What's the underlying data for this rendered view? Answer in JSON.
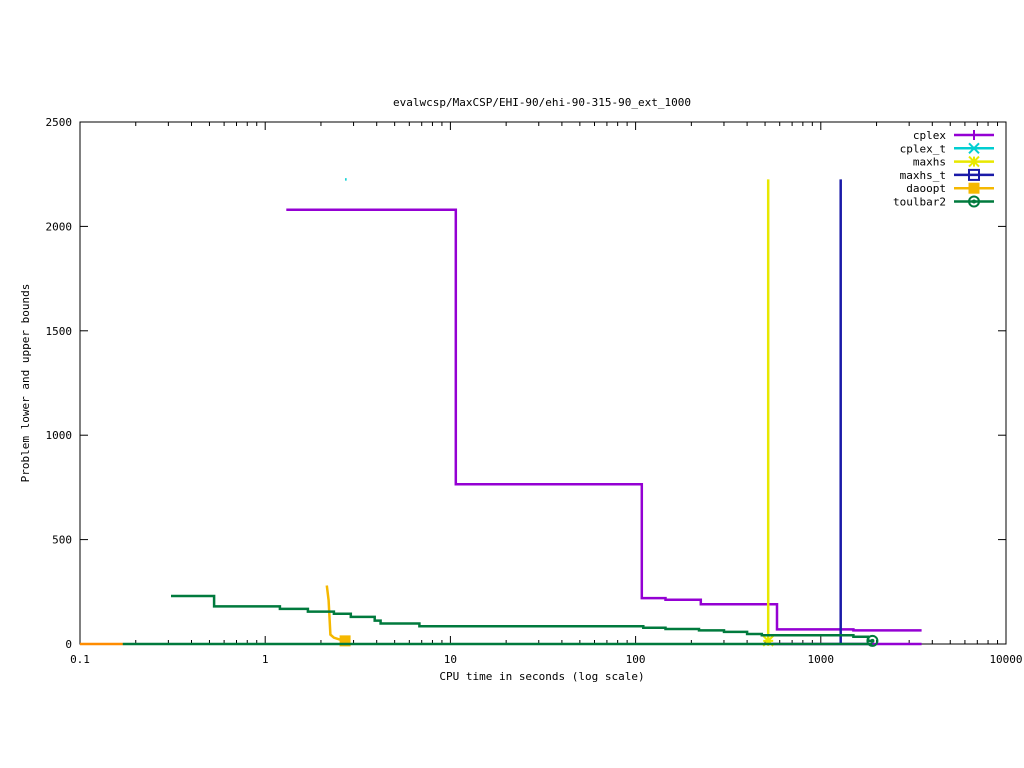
{
  "chart_data": {
    "type": "line",
    "title": "evalwcsp/MaxCSP/EHI-90/ehi-90-315-90_ext_1000",
    "xlabel": "CPU time in seconds (log scale)",
    "ylabel": "Problem lower and upper bounds",
    "xscale": "log",
    "xlim": [
      0.1,
      10000
    ],
    "ylim": [
      0,
      2500
    ],
    "x_ticks": [
      {
        "value": 0.1,
        "label": "0.1"
      },
      {
        "value": 1,
        "label": "1"
      },
      {
        "value": 10,
        "label": "10"
      },
      {
        "value": 100,
        "label": "100"
      },
      {
        "value": 1000,
        "label": "1000"
      },
      {
        "value": 10000,
        "label": "10000"
      }
    ],
    "y_ticks": [
      {
        "value": 0,
        "label": "0"
      },
      {
        "value": 500,
        "label": "500"
      },
      {
        "value": 1000,
        "label": "1000"
      },
      {
        "value": 1500,
        "label": "1500"
      },
      {
        "value": 2000,
        "label": "2000"
      },
      {
        "value": 2500,
        "label": "2500"
      }
    ],
    "grid": false,
    "legend_position": "top-right",
    "series": [
      {
        "name": "cplex",
        "color": "#9400d3",
        "marker": "plus",
        "upper": [
          [
            1.3,
            2080
          ],
          [
            10.7,
            2080
          ],
          [
            10.7,
            765
          ],
          [
            108,
            765
          ],
          [
            108,
            220
          ],
          [
            145,
            220
          ],
          [
            145,
            212
          ],
          [
            225,
            212
          ],
          [
            225,
            190
          ],
          [
            580,
            190
          ],
          [
            580,
            70
          ],
          [
            1500,
            70
          ],
          [
            1500,
            65
          ],
          [
            3500,
            65
          ]
        ],
        "lower": [
          [
            540,
            0
          ],
          [
            3500,
            0
          ]
        ],
        "marker_points": []
      },
      {
        "name": "cplex_t",
        "color": "#00ced1",
        "marker": "cross",
        "upper": [],
        "lower": [
          [
            2.7,
            2225
          ],
          [
            2.75,
            2225
          ]
        ],
        "marker_points": []
      },
      {
        "name": "maxhs",
        "color": "#e8e800",
        "marker": "star",
        "upper": [
          [
            520,
            2225
          ],
          [
            520,
            15
          ]
        ],
        "lower": [
          [
            520,
            0
          ],
          [
            520,
            15
          ]
        ],
        "marker_points": [
          [
            520,
            15
          ]
        ]
      },
      {
        "name": "maxhs_t",
        "color": "#1a1aa8",
        "marker": "square",
        "upper": [
          [
            1280,
            2225
          ],
          [
            1280,
            0
          ]
        ],
        "lower": [],
        "marker_points": []
      },
      {
        "name": "daoopt",
        "color": "#f5b800",
        "marker": "filled-square",
        "upper": [
          [
            2.15,
            280
          ],
          [
            2.2,
            210
          ],
          [
            2.25,
            45
          ],
          [
            2.35,
            30
          ],
          [
            2.55,
            20
          ],
          [
            2.8,
            15
          ]
        ],
        "lower": [],
        "marker_points": [
          [
            2.7,
            15
          ]
        ]
      },
      {
        "name": "toulbar2",
        "color": "#007a3d",
        "marker": "circle",
        "upper": [
          [
            0.31,
            230
          ],
          [
            0.53,
            230
          ],
          [
            0.53,
            180
          ],
          [
            1.2,
            180
          ],
          [
            1.2,
            168
          ],
          [
            1.7,
            168
          ],
          [
            1.7,
            155
          ],
          [
            2.35,
            155
          ],
          [
            2.35,
            145
          ],
          [
            2.9,
            145
          ],
          [
            2.9,
            130
          ],
          [
            3.9,
            130
          ],
          [
            3.9,
            112
          ],
          [
            4.2,
            112
          ],
          [
            4.2,
            98
          ],
          [
            6.8,
            98
          ],
          [
            6.8,
            85
          ],
          [
            110,
            85
          ],
          [
            110,
            78
          ],
          [
            145,
            78
          ],
          [
            145,
            72
          ],
          [
            220,
            72
          ],
          [
            220,
            65
          ],
          [
            300,
            65
          ],
          [
            300,
            58
          ],
          [
            400,
            58
          ],
          [
            400,
            48
          ],
          [
            480,
            48
          ],
          [
            480,
            42
          ],
          [
            1500,
            42
          ],
          [
            1500,
            35
          ],
          [
            1800,
            35
          ],
          [
            1800,
            15
          ],
          [
            1900,
            15
          ]
        ],
        "lower": [
          [
            0.17,
            0
          ],
          [
            1900,
            0
          ]
        ],
        "marker_points": [
          [
            1900,
            15
          ]
        ]
      },
      {
        "name": "",
        "color": "#ff8c00",
        "marker": "none",
        "upper": [],
        "lower": [
          [
            0.1,
            0
          ],
          [
            0.17,
            0
          ]
        ],
        "marker_points": []
      }
    ]
  }
}
